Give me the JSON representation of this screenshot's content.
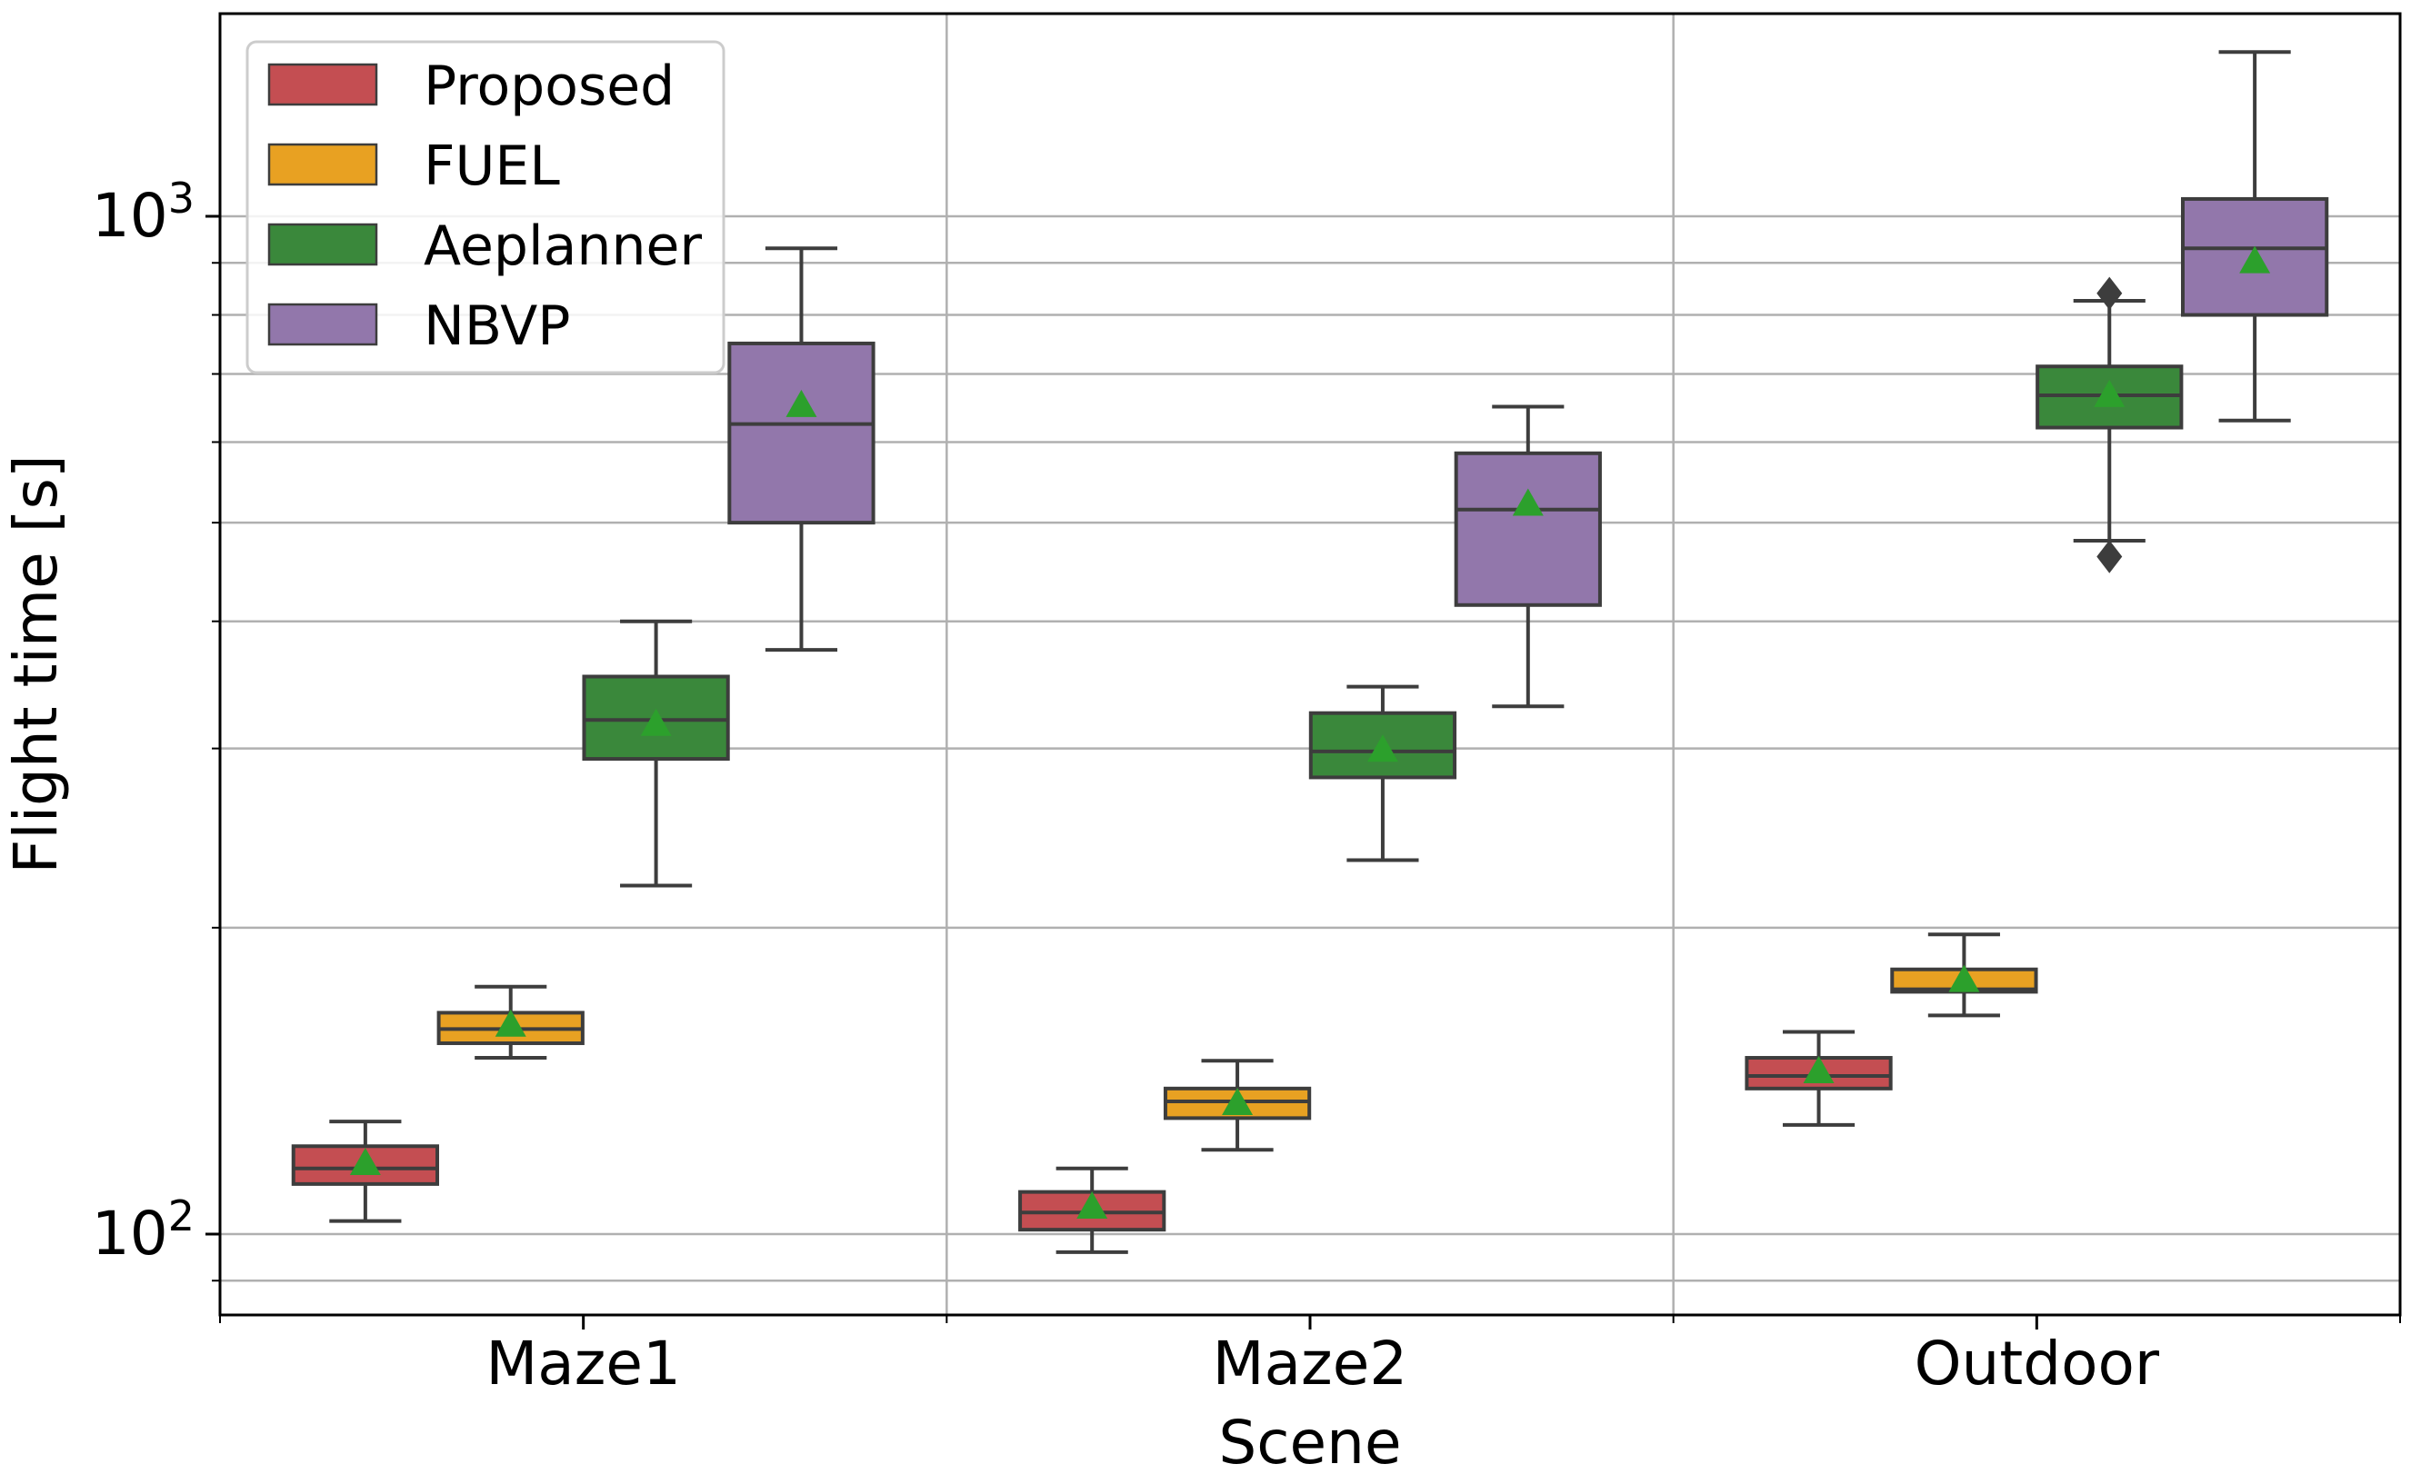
{
  "chart_data": {
    "type": "box",
    "xlabel": "Scene",
    "ylabel": "Flight time [s]",
    "y_scale": "log",
    "ylim": [
      85,
      1600
    ],
    "y_tick_labels": [
      {
        "value": 100,
        "base": "10",
        "exp": "2"
      },
      {
        "value": 1000,
        "base": "10",
        "exp": "3"
      }
    ],
    "grid": true,
    "legend_position": "upper-left",
    "categories": [
      "Maze1",
      "Maze2",
      "Outdoor"
    ],
    "series": [
      {
        "name": "Proposed",
        "color": "#c44e52",
        "boxes": [
          {
            "whisker_low": 103,
            "q1": 112,
            "median": 116,
            "q3": 122,
            "whisker_high": 129,
            "mean": 117
          },
          {
            "whisker_low": 96,
            "q1": 101,
            "median": 105,
            "q3": 110,
            "whisker_high": 116,
            "mean": 106
          },
          {
            "whisker_low": 128,
            "q1": 139,
            "median": 143,
            "q3": 149,
            "whisker_high": 158,
            "mean": 144
          }
        ]
      },
      {
        "name": "FUEL",
        "color": "#e8a122",
        "boxes": [
          {
            "whisker_low": 149,
            "q1": 154,
            "median": 159,
            "q3": 165,
            "whisker_high": 175,
            "mean": 160
          },
          {
            "whisker_low": 121,
            "q1": 130,
            "median": 135,
            "q3": 139,
            "whisker_high": 148,
            "mean": 134
          },
          {
            "whisker_low": 164,
            "q1": 173,
            "median": 174,
            "q3": 182,
            "whisker_high": 197,
            "mean": 177
          }
        ]
      },
      {
        "name": "Aeplanner",
        "color": "#3a883b",
        "boxes": [
          {
            "whisker_low": 220,
            "q1": 293,
            "median": 320,
            "q3": 353,
            "whisker_high": 400,
            "mean": 316
          },
          {
            "whisker_low": 233,
            "q1": 281,
            "median": 298,
            "q3": 325,
            "whisker_high": 345,
            "mean": 298
          },
          {
            "whisker_low": 480,
            "q1": 620,
            "median": 667,
            "q3": 712,
            "whisker_high": 826,
            "mean": 665,
            "outliers": [
              463,
              840
            ]
          }
        ]
      },
      {
        "name": "NBVP",
        "color": "#9277ab",
        "boxes": [
          {
            "whisker_low": 375,
            "q1": 500,
            "median": 625,
            "q3": 750,
            "whisker_high": 930,
            "mean": 650
          },
          {
            "whisker_low": 330,
            "q1": 415,
            "median": 515,
            "q3": 585,
            "whisker_high": 650,
            "mean": 520
          },
          {
            "whisker_low": 630,
            "q1": 800,
            "median": 930,
            "q3": 1040,
            "whisker_high": 1450,
            "mean": 900
          }
        ]
      }
    ]
  }
}
